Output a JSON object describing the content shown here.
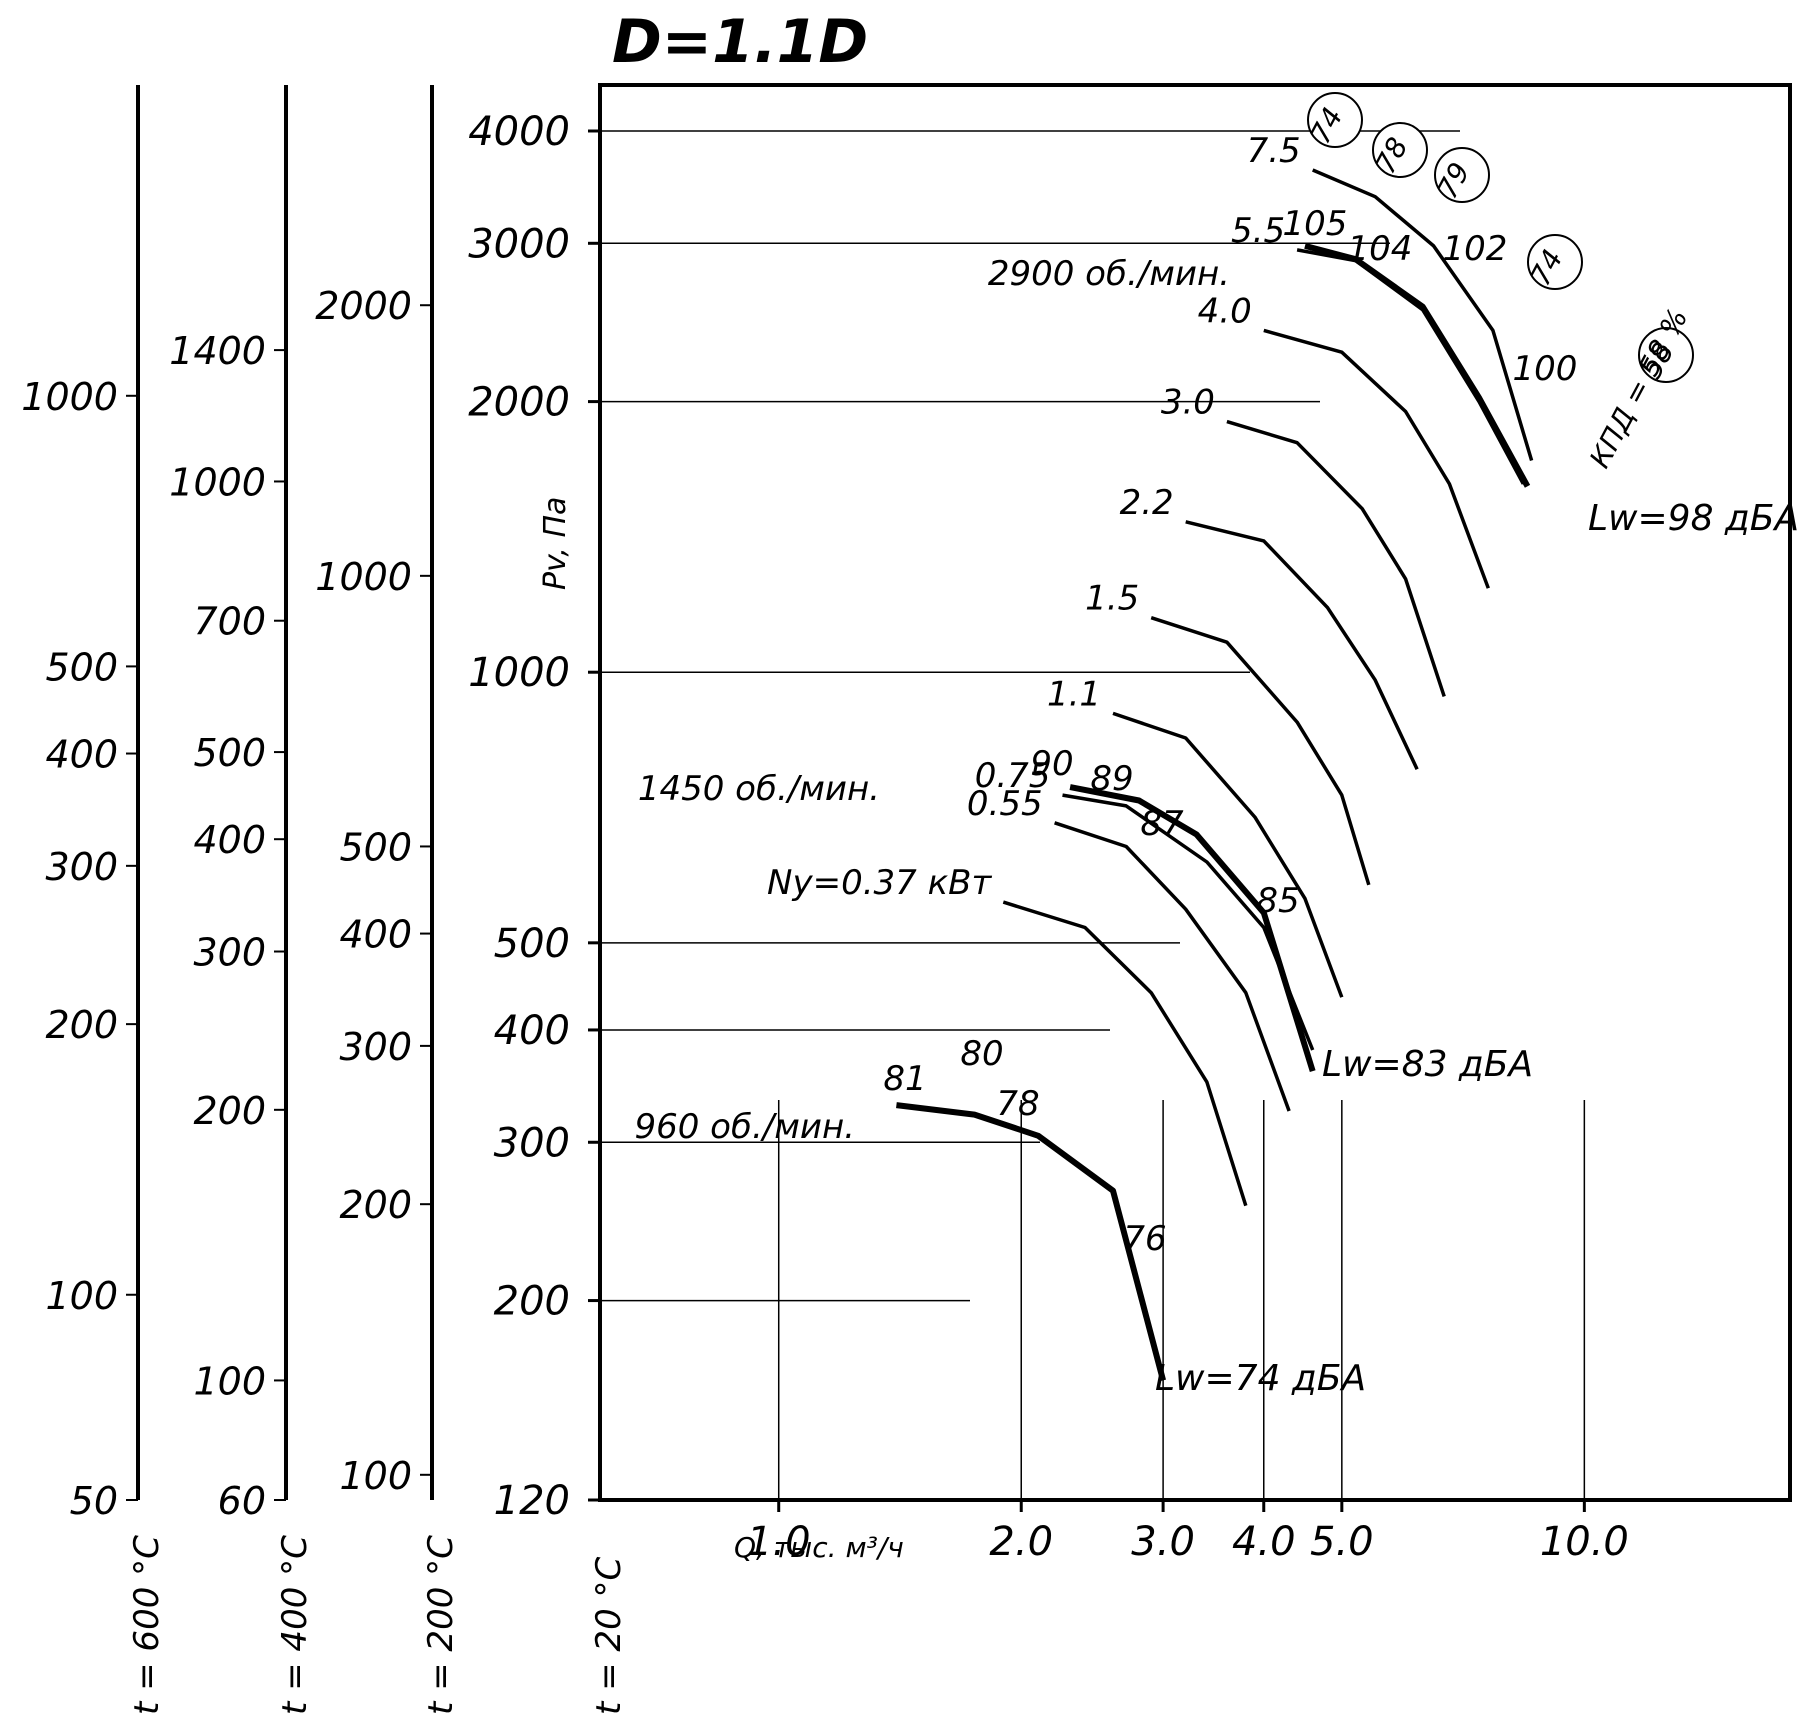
{
  "chart_data": {
    "type": "line",
    "title": "D=1.1D",
    "xlabel": "Q, тыс. м³/ч",
    "ylabel": "Pv, Па",
    "x_scale": "log",
    "y_scale": "log",
    "xlim": [
      0.6,
      18
    ],
    "ylim": [
      120,
      4500
    ],
    "x_ticks": [
      "1.0",
      "2.0",
      "3.0",
      "4.0",
      "5.0",
      "10.0"
    ],
    "y_ticks": [
      "120",
      "200",
      "300",
      "400",
      "500",
      "1000",
      "2000",
      "3000",
      "4000"
    ],
    "temp_scales": [
      {
        "label": "t = 20 °C"
      },
      {
        "label": "t = 200 °C",
        "ticks": [
          "100",
          "200",
          "300",
          "400",
          "500",
          "1000",
          "2000"
        ]
      },
      {
        "label": "t = 400 °C",
        "ticks": [
          "60",
          "100",
          "200",
          "300",
          "400",
          "500",
          "700",
          "1000",
          "1400"
        ]
      },
      {
        "label": "t = 600 °C",
        "ticks": [
          "50",
          "100",
          "200",
          "300",
          "400",
          "500",
          "1000"
        ]
      }
    ],
    "speed_labels": [
      "2900 об./мин.",
      "1450 об./мин.",
      "960 об./мин."
    ],
    "power_labels": [
      "7.5",
      "5.5",
      "4.0",
      "3.0",
      "2.2",
      "1.5",
      "1.1",
      "0.75",
      "0.55",
      "Ny=0.37 кВт"
    ],
    "series": [
      {
        "name": "7.5",
        "points": [
          [
            4.6,
            3620
          ],
          [
            5.5,
            3380
          ],
          [
            6.5,
            2980
          ],
          [
            7.7,
            2400
          ],
          [
            8.6,
            1720
          ]
        ]
      },
      {
        "name": "5.5",
        "points": [
          [
            4.4,
            2950
          ],
          [
            5.2,
            2870
          ],
          [
            6.3,
            2530
          ],
          [
            7.4,
            2000
          ],
          [
            8.4,
            1620
          ]
        ]
      },
      {
        "name": "4.0",
        "points": [
          [
            4.0,
            2400
          ],
          [
            5.0,
            2270
          ],
          [
            6.0,
            1950
          ],
          [
            6.8,
            1620
          ],
          [
            7.6,
            1240
          ]
        ]
      },
      {
        "name": "3.0",
        "points": [
          [
            3.6,
            1900
          ],
          [
            4.4,
            1800
          ],
          [
            5.3,
            1520
          ],
          [
            6.0,
            1270
          ],
          [
            6.7,
            940
          ]
        ]
      },
      {
        "name": "2.2",
        "points": [
          [
            3.2,
            1470
          ],
          [
            4.0,
            1400
          ],
          [
            4.8,
            1180
          ],
          [
            5.5,
            980
          ],
          [
            6.2,
            780
          ]
        ]
      },
      {
        "name": "1.5",
        "points": [
          [
            2.9,
            1150
          ],
          [
            3.6,
            1080
          ],
          [
            4.4,
            880
          ],
          [
            5.0,
            730
          ],
          [
            5.4,
            580
          ]
        ]
      },
      {
        "name": "1.1",
        "points": [
          [
            2.6,
            900
          ],
          [
            3.2,
            845
          ],
          [
            3.9,
            690
          ],
          [
            4.5,
            560
          ],
          [
            5.0,
            435
          ]
        ]
      },
      {
        "name": "0.75",
        "points": [
          [
            2.25,
            730
          ],
          [
            2.7,
            710
          ],
          [
            3.4,
            615
          ],
          [
            4.0,
            520
          ],
          [
            4.6,
            380
          ]
        ]
      },
      {
        "name": "0.55",
        "points": [
          [
            2.2,
            680
          ],
          [
            2.7,
            640
          ],
          [
            3.2,
            545
          ],
          [
            3.8,
            440
          ],
          [
            4.3,
            325
          ]
        ]
      },
      {
        "name": "0.37",
        "points": [
          [
            1.9,
            555
          ],
          [
            2.4,
            520
          ],
          [
            2.9,
            440
          ],
          [
            3.4,
            350
          ],
          [
            3.8,
            255
          ]
        ]
      },
      {
        "name": "1450 об./мин.",
        "bold": true,
        "points": [
          [
            2.3,
            745
          ],
          [
            2.8,
            720
          ],
          [
            3.3,
            660
          ],
          [
            4.0,
            540
          ],
          [
            4.6,
            360
          ]
        ]
      },
      {
        "name": "2900 об./мин.",
        "bold": true,
        "points": [
          [
            4.5,
            2980
          ],
          [
            5.2,
            2880
          ],
          [
            6.3,
            2550
          ],
          [
            7.4,
            2020
          ],
          [
            8.5,
            1610
          ]
        ]
      },
      {
        "name": "960 об./мин.",
        "bold": true,
        "points": [
          [
            1.4,
            330
          ],
          [
            1.75,
            322
          ],
          [
            2.1,
            305
          ],
          [
            2.6,
            265
          ],
          [
            3.0,
            163
          ]
        ]
      }
    ],
    "efficiency_labels": [
      "74",
      "78",
      "79",
      "74"
    ],
    "efficiency_label": "КПД = 58 %",
    "efficiency_circled": [
      "58"
    ],
    "noise_labels_inner": [
      "105",
      "104",
      "102",
      "100",
      "90",
      "89",
      "87",
      "85",
      "81",
      "80",
      "78",
      "76"
    ],
    "noise_levels": [
      "Lw=98 дБА",
      "Lw=83 дБА",
      "Lw=74 дБА"
    ],
    "grid": true
  },
  "colors": {
    "line": "#000000",
    "background": "#ffffff"
  }
}
